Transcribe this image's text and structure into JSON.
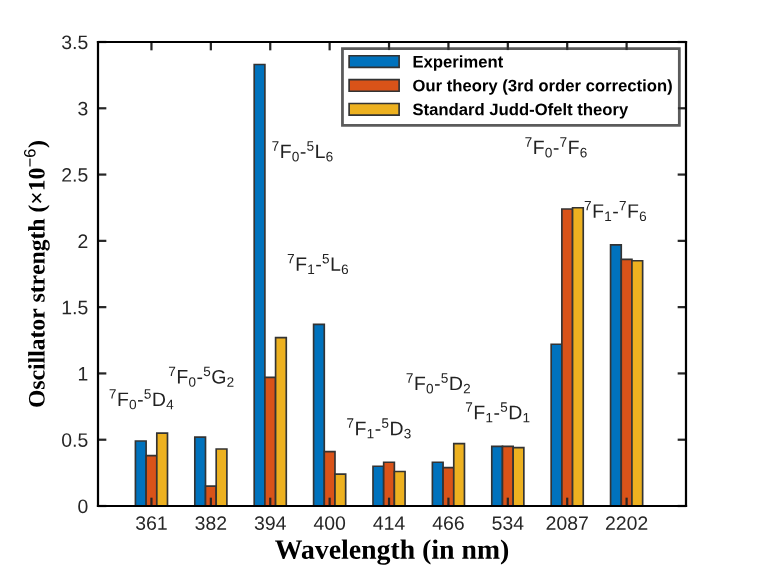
{
  "chart_data": {
    "type": "bar",
    "xlabel": "Wavelength (in nm)",
    "ylabel": "Oscillator strength (×10$^{−6}$)",
    "categories": [
      "361",
      "382",
      "394",
      "400",
      "414",
      "466",
      "534",
      "2087",
      "2202"
    ],
    "series": [
      {
        "name": "Experiment",
        "color": "#0072bd",
        "values": [
          0.49,
          0.52,
          3.33,
          1.37,
          0.3,
          0.33,
          0.45,
          1.22,
          1.97
        ]
      },
      {
        "name": "Our theory (3rd order correction)",
        "color": "#d95319",
        "values": [
          0.38,
          0.15,
          0.97,
          0.41,
          0.33,
          0.29,
          0.45,
          2.24,
          1.86
        ]
      },
      {
        "name": "Standard Judd-Ofelt theory",
        "color": "#edb120",
        "values": [
          0.55,
          0.43,
          1.27,
          0.24,
          0.26,
          0.47,
          0.44,
          2.25,
          1.85
        ]
      }
    ],
    "ylim": [
      0,
      3.5
    ],
    "yticks": [
      0,
      0.5,
      1,
      1.5,
      2,
      2.5,
      3,
      3.5
    ],
    "grid": false,
    "legend": "top right",
    "annotations": [
      "$^{7}$F$_{0}$-$^{5}$D$_{4}$",
      "$^{7}$F$_{0}$-$^{5}$G$_{2}$",
      "$^{7}$F$_{0}$-$^{5}$L$_{6}$",
      "$^{7}$F$_{1}$-$^{5}$L$_{6}$",
      "$^{7}$F$_{1}$-$^{5}$D$_{3}$",
      "$^{7}$F$_{0}$-$^{5}$D$_{2}$",
      "$^{7}$F$_{1}$-$^{5}$D$_{1}$",
      "$^{7}$F$_{0}$-$^{7}$F$_{6}$",
      "$^{7}$F$_{1}$-$^{7}$F$_{6}$"
    ]
  }
}
